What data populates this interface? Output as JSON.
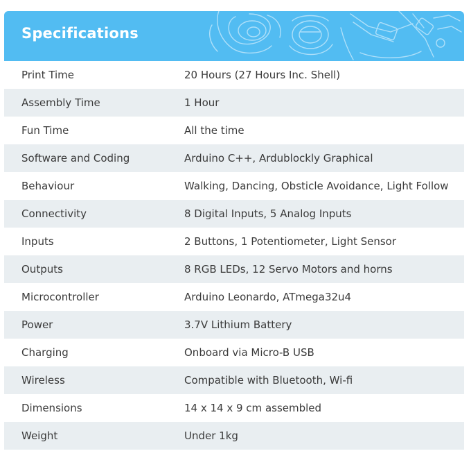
{
  "header": {
    "title": "Specifications",
    "art_icon": "robot-sketch-icon",
    "background_color": "#52bcf2"
  },
  "specs": [
    {
      "label": "Print Time",
      "value": "20 Hours (27 Hours Inc. Shell)"
    },
    {
      "label": "Assembly Time",
      "value": "1 Hour"
    },
    {
      "label": "Fun Time",
      "value": "All the time"
    },
    {
      "label": "Software and Coding",
      "value": "Arduino C++, Ardublockly Graphical"
    },
    {
      "label": "Behaviour",
      "value": "Walking, Dancing, Obsticle Avoidance, Light Follow"
    },
    {
      "label": "Connectivity",
      "value": "8 Digital Inputs, 5 Analog Inputs"
    },
    {
      "label": "Inputs",
      "value": "2 Buttons, 1 Potentiometer, Light Sensor"
    },
    {
      "label": "Outputs",
      "value": "8 RGB LEDs, 12 Servo Motors and horns"
    },
    {
      "label": "Microcontroller",
      "value": "Arduino Leonardo, ATmega32u4"
    },
    {
      "label": "Power",
      "value": "3.7V Lithium Battery"
    },
    {
      "label": "Charging",
      "value": "Onboard via Micro-B USB"
    },
    {
      "label": "Wireless",
      "value": "Compatible with Bluetooth, Wi-fi"
    },
    {
      "label": "Dimensions",
      "value": "14 x 14 x 9 cm assembled"
    },
    {
      "label": "Weight",
      "value": "Under 1kg"
    }
  ],
  "colors": {
    "alt_row": "#e9eef1",
    "text": "#3a3a3a"
  }
}
